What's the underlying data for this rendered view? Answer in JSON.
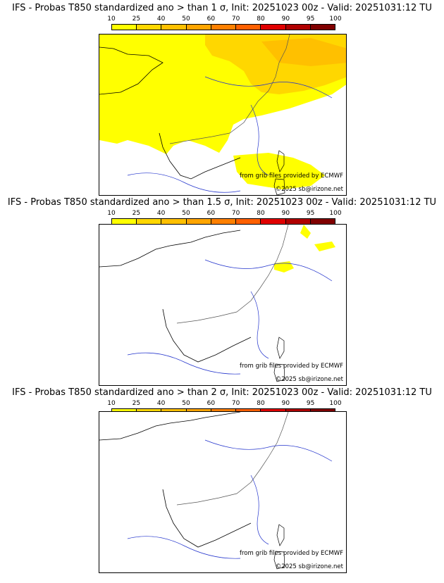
{
  "colorbar": {
    "ticks": [
      "10",
      "25",
      "40",
      "50",
      "60",
      "70",
      "80",
      "90",
      "95",
      "100"
    ],
    "colors": [
      "#ffff00",
      "#ffd700",
      "#ffc000",
      "#ffa500",
      "#ff8000",
      "#ff6000",
      "#e00000",
      "#b00000",
      "#800000"
    ]
  },
  "panels": [
    {
      "title": "IFS - Probas T850  standardized ano > than 1 σ, Init: 20251023 00z - Valid: 20251031:12 TU",
      "credit_source": "from grib files provided by ECMWF",
      "credit_copy": "©2025 sb@irizone.net"
    },
    {
      "title": "IFS - Probas T850  standardized ano > than 1.5 σ, Init: 20251023 00z - Valid: 20251031:12 TU",
      "credit_source": "from grib files provided by ECMWF",
      "credit_copy": "©2025 sb@irizone.net"
    },
    {
      "title": "IFS - Probas T850  standardized ano > than 2 σ, Init: 20251023 00z - Valid: 20251031:12 TU",
      "credit_source": "from grib files provided by ECMWF",
      "credit_copy": "©2025 sb@irizone.net"
    }
  ]
}
